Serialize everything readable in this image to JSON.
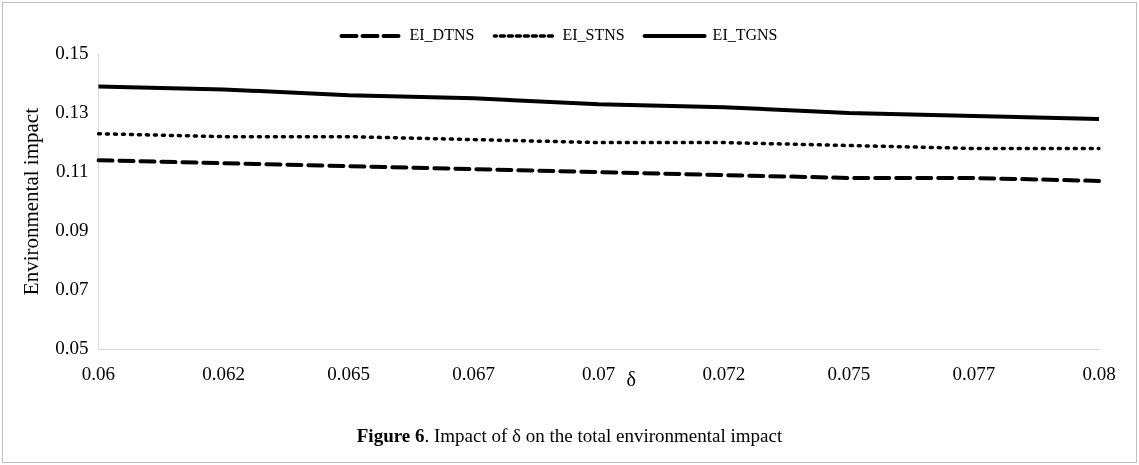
{
  "chart_data": {
    "type": "line",
    "xlabel": "δ",
    "ylabel": "Environmental impact",
    "categories": [
      "0.06",
      "0.062",
      "0.065",
      "0.067",
      "0.07",
      "0.072",
      "0.075",
      "0.077",
      "0.08"
    ],
    "series": [
      {
        "name": "EI_DTNS",
        "color": "#000000",
        "line_style": "dashed",
        "values": [
          0.114,
          0.113,
          0.112,
          0.111,
          0.11,
          0.109,
          0.108,
          0.108,
          0.107
        ]
      },
      {
        "name": "EI_STNS",
        "color": "#000000",
        "line_style": "dotted",
        "values": [
          0.123,
          0.122,
          0.122,
          0.121,
          0.12,
          0.12,
          0.119,
          0.118,
          0.118
        ]
      },
      {
        "name": "EI_TGNS",
        "color": "#000000",
        "line_style": "solid",
        "values": [
          0.139,
          0.138,
          0.136,
          0.135,
          0.133,
          0.132,
          0.13,
          0.129,
          0.128
        ]
      }
    ],
    "ylim": [
      0.05,
      0.15
    ],
    "yticks": [
      0.05,
      0.07,
      0.09,
      0.11,
      0.13,
      0.15
    ],
    "grid": false,
    "legend": "top",
    "marker": "none",
    "annotations": [
      "Figure 6. Impact of δ on the total environmental impact"
    ]
  }
}
